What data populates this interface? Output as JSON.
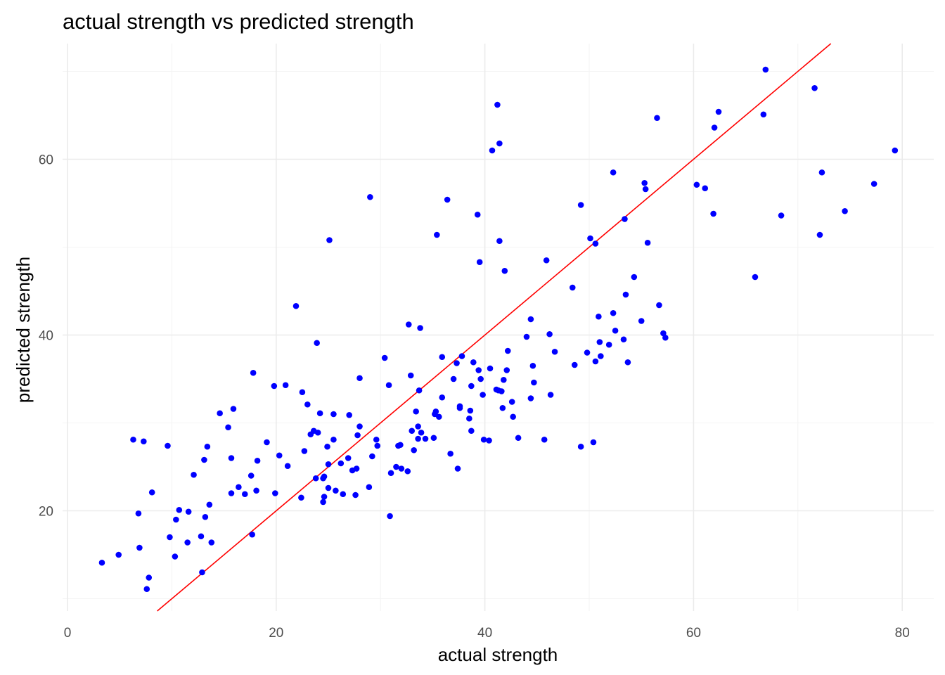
{
  "chart_data": {
    "type": "scatter",
    "title": "actual strength vs predicted strength",
    "xlabel": "actual strength",
    "ylabel": "predicted strength",
    "xlim": [
      0,
      83
    ],
    "ylim": [
      8.7,
      73
    ],
    "x_ticks": [
      0,
      20,
      40,
      60,
      80
    ],
    "x_tick_labels": [
      "0",
      "20",
      "40",
      "60",
      "80"
    ],
    "y_ticks": [
      20,
      40,
      60
    ],
    "y_tick_labels": [
      "20",
      "40",
      "60"
    ],
    "grid": true,
    "legend": "none",
    "point_color": "#0000ff",
    "reference_line": {
      "type": "y = x",
      "color": "#ff0000"
    },
    "points": [
      [
        3.3,
        14.1
      ],
      [
        4.9,
        15.0
      ],
      [
        6.3,
        28.1
      ],
      [
        6.8,
        19.7
      ],
      [
        6.9,
        15.8
      ],
      [
        7.3,
        27.9
      ],
      [
        7.6,
        11.1
      ],
      [
        7.8,
        12.4
      ],
      [
        8.1,
        22.1
      ],
      [
        9.6,
        27.4
      ],
      [
        9.8,
        17.0
      ],
      [
        10.3,
        14.8
      ],
      [
        10.4,
        19.0
      ],
      [
        10.7,
        20.1
      ],
      [
        11.5,
        16.4
      ],
      [
        11.6,
        19.9
      ],
      [
        12.1,
        24.1
      ],
      [
        12.8,
        17.1
      ],
      [
        12.9,
        13.0
      ],
      [
        13.1,
        25.8
      ],
      [
        13.2,
        19.3
      ],
      [
        13.4,
        27.3
      ],
      [
        13.6,
        20.7
      ],
      [
        13.8,
        16.4
      ],
      [
        14.6,
        31.1
      ],
      [
        15.4,
        29.5
      ],
      [
        15.7,
        26.0
      ],
      [
        15.7,
        22.0
      ],
      [
        15.9,
        31.6
      ],
      [
        16.4,
        22.7
      ],
      [
        17.0,
        21.9
      ],
      [
        17.6,
        24.0
      ],
      [
        17.7,
        17.3
      ],
      [
        17.8,
        35.7
      ],
      [
        18.1,
        22.3
      ],
      [
        18.2,
        25.7
      ],
      [
        19.1,
        27.8
      ],
      [
        19.8,
        34.2
      ],
      [
        19.9,
        22.0
      ],
      [
        20.3,
        26.3
      ],
      [
        20.9,
        34.3
      ],
      [
        21.1,
        25.1
      ],
      [
        21.9,
        43.3
      ],
      [
        22.4,
        21.5
      ],
      [
        22.5,
        33.5
      ],
      [
        22.7,
        26.8
      ],
      [
        23.0,
        32.1
      ],
      [
        23.3,
        28.7
      ],
      [
        23.6,
        29.1
      ],
      [
        23.8,
        23.7
      ],
      [
        23.9,
        39.1
      ],
      [
        24.0,
        28.9
      ],
      [
        24.2,
        31.1
      ],
      [
        24.5,
        23.7
      ],
      [
        24.5,
        21.0
      ],
      [
        24.6,
        21.6
      ],
      [
        24.6,
        23.9
      ],
      [
        24.9,
        27.3
      ],
      [
        25.0,
        25.3
      ],
      [
        25.0,
        22.6
      ],
      [
        25.1,
        50.8
      ],
      [
        25.5,
        28.1
      ],
      [
        25.5,
        31.0
      ],
      [
        25.7,
        22.3
      ],
      [
        26.2,
        25.4
      ],
      [
        26.4,
        21.9
      ],
      [
        26.9,
        26.0
      ],
      [
        27.0,
        30.9
      ],
      [
        27.3,
        24.6
      ],
      [
        27.6,
        21.8
      ],
      [
        27.7,
        24.8
      ],
      [
        27.8,
        28.6
      ],
      [
        28.0,
        29.6
      ],
      [
        28.0,
        35.1
      ],
      [
        28.9,
        22.7
      ],
      [
        29.0,
        55.7
      ],
      [
        29.2,
        26.2
      ],
      [
        29.6,
        28.1
      ],
      [
        29.7,
        27.4
      ],
      [
        30.4,
        37.4
      ],
      [
        30.8,
        34.3
      ],
      [
        30.9,
        19.4
      ],
      [
        31.0,
        24.3
      ],
      [
        31.5,
        25.0
      ],
      [
        31.7,
        27.4
      ],
      [
        31.9,
        27.5
      ],
      [
        32.0,
        24.8
      ],
      [
        32.6,
        24.5
      ],
      [
        32.7,
        41.2
      ],
      [
        32.9,
        35.4
      ],
      [
        33.0,
        29.1
      ],
      [
        33.2,
        26.9
      ],
      [
        33.4,
        31.3
      ],
      [
        33.6,
        28.2
      ],
      [
        33.6,
        29.6
      ],
      [
        33.7,
        33.7
      ],
      [
        33.8,
        40.8
      ],
      [
        33.9,
        28.9
      ],
      [
        34.3,
        28.2
      ],
      [
        35.1,
        28.3
      ],
      [
        35.2,
        31.0
      ],
      [
        35.3,
        31.3
      ],
      [
        35.4,
        51.4
      ],
      [
        35.6,
        30.7
      ],
      [
        35.9,
        37.5
      ],
      [
        35.9,
        32.9
      ],
      [
        36.4,
        55.4
      ],
      [
        36.7,
        26.5
      ],
      [
        37.0,
        35.0
      ],
      [
        37.3,
        36.8
      ],
      [
        37.4,
        24.8
      ],
      [
        37.6,
        31.9
      ],
      [
        37.6,
        31.7
      ],
      [
        37.8,
        37.6
      ],
      [
        38.5,
        30.5
      ],
      [
        38.6,
        31.4
      ],
      [
        38.7,
        34.2
      ],
      [
        38.7,
        29.1
      ],
      [
        38.9,
        36.9
      ],
      [
        39.3,
        53.7
      ],
      [
        39.4,
        36.0
      ],
      [
        39.5,
        48.3
      ],
      [
        39.6,
        35.0
      ],
      [
        39.8,
        33.2
      ],
      [
        39.9,
        28.1
      ],
      [
        40.4,
        28.0
      ],
      [
        40.5,
        36.2
      ],
      [
        40.7,
        61.0
      ],
      [
        41.1,
        33.8
      ],
      [
        41.2,
        66.2
      ],
      [
        41.3,
        33.7
      ],
      [
        41.4,
        61.8
      ],
      [
        41.4,
        50.7
      ],
      [
        41.6,
        33.6
      ],
      [
        41.7,
        31.7
      ],
      [
        41.8,
        34.9
      ],
      [
        41.9,
        47.3
      ],
      [
        42.1,
        36.0
      ],
      [
        42.2,
        38.2
      ],
      [
        42.6,
        32.4
      ],
      [
        42.7,
        30.7
      ],
      [
        43.2,
        28.3
      ],
      [
        44.0,
        39.8
      ],
      [
        44.4,
        41.8
      ],
      [
        44.4,
        32.8
      ],
      [
        44.6,
        36.5
      ],
      [
        44.7,
        34.6
      ],
      [
        45.7,
        28.1
      ],
      [
        45.9,
        48.5
      ],
      [
        46.2,
        40.1
      ],
      [
        46.3,
        33.2
      ],
      [
        46.7,
        38.1
      ],
      [
        48.4,
        45.4
      ],
      [
        48.6,
        36.6
      ],
      [
        49.2,
        54.8
      ],
      [
        49.2,
        27.3
      ],
      [
        49.8,
        38.0
      ],
      [
        50.1,
        51.0
      ],
      [
        50.4,
        27.8
      ],
      [
        50.6,
        50.4
      ],
      [
        50.6,
        37.0
      ],
      [
        50.9,
        42.1
      ],
      [
        51.0,
        39.2
      ],
      [
        51.1,
        37.6
      ],
      [
        51.9,
        38.9
      ],
      [
        52.3,
        58.5
      ],
      [
        52.3,
        42.5
      ],
      [
        52.5,
        40.5
      ],
      [
        53.3,
        39.5
      ],
      [
        53.4,
        53.2
      ],
      [
        53.5,
        44.6
      ],
      [
        53.7,
        36.9
      ],
      [
        54.3,
        46.6
      ],
      [
        55.0,
        41.6
      ],
      [
        55.3,
        57.3
      ],
      [
        55.4,
        56.6
      ],
      [
        55.6,
        50.5
      ],
      [
        56.5,
        64.7
      ],
      [
        56.7,
        43.4
      ],
      [
        57.1,
        40.2
      ],
      [
        57.3,
        39.7
      ],
      [
        60.3,
        57.1
      ],
      [
        61.1,
        56.7
      ],
      [
        62.0,
        63.6
      ],
      [
        61.9,
        53.8
      ],
      [
        62.4,
        65.4
      ],
      [
        65.9,
        46.6
      ],
      [
        66.7,
        65.1
      ],
      [
        66.9,
        70.2
      ],
      [
        68.4,
        53.6
      ],
      [
        71.6,
        68.1
      ],
      [
        72.1,
        51.4
      ],
      [
        72.3,
        58.5
      ],
      [
        74.5,
        54.1
      ],
      [
        77.3,
        57.2
      ],
      [
        79.3,
        61.0
      ]
    ]
  }
}
